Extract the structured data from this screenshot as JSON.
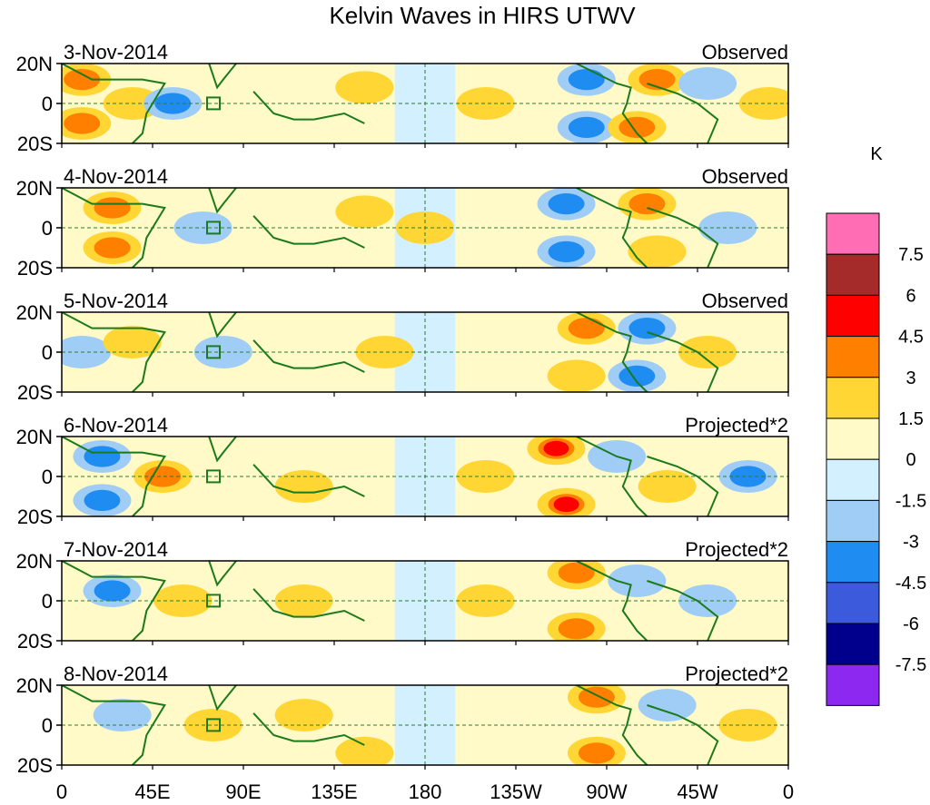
{
  "chart_data": {
    "type": "heatmap",
    "title": "Kelvin Waves in HIRS UTWV",
    "xlabel": "",
    "ylabel": "",
    "x_ticks": [
      "0",
      "45E",
      "90E",
      "135E",
      "180",
      "135W",
      "90W",
      "45W",
      "0"
    ],
    "y_ticks": [
      "20N",
      "0",
      "20S"
    ],
    "xlim": [
      0,
      360
    ],
    "ylim": [
      -20,
      20
    ],
    "colorbar": {
      "unit": "K",
      "levels": [
        "7.5",
        "6",
        "4.5",
        "3",
        "1.5",
        "0",
        "-1.5",
        "-3",
        "-4.5",
        "-6",
        "-7.5"
      ],
      "colors": [
        "#ff6eb4",
        "#a52a2a",
        "#ff0000",
        "#ff7f00",
        "#ffd633",
        "#fffac8",
        "#d2f0ff",
        "#a0cdf5",
        "#1e8cf0",
        "#3c5adc",
        "#00008c",
        "#8c28f0"
      ]
    },
    "panels": [
      {
        "date": "3-Nov-2014",
        "label": "Observed",
        "index": 0
      },
      {
        "date": "4-Nov-2014",
        "label": "Observed",
        "index": 1
      },
      {
        "date": "5-Nov-2014",
        "label": "Observed",
        "index": 2
      },
      {
        "date": "6-Nov-2014",
        "label": "Projected*2",
        "index": 3
      },
      {
        "date": "7-Nov-2014",
        "label": "Projected*2",
        "index": 4
      },
      {
        "date": "8-Nov-2014",
        "label": "Projected*2",
        "index": 5
      }
    ],
    "anomaly_blobs": [
      [
        {
          "lon": 10,
          "lat": 12,
          "value": 3.5
        },
        {
          "lon": 10,
          "lat": -10,
          "value": 3.5
        },
        {
          "lon": 35,
          "lat": 0,
          "value": 1.5
        },
        {
          "lon": 55,
          "lat": 0,
          "value": -3.5
        },
        {
          "lon": 150,
          "lat": 8,
          "value": 1.5
        },
        {
          "lon": 210,
          "lat": 0,
          "value": 1.5
        },
        {
          "lon": 260,
          "lat": 12,
          "value": -3.5
        },
        {
          "lon": 260,
          "lat": -12,
          "value": -3.5
        },
        {
          "lon": 295,
          "lat": 12,
          "value": 3.5
        },
        {
          "lon": 285,
          "lat": -12,
          "value": 3.5
        },
        {
          "lon": 320,
          "lat": 10,
          "value": -2
        },
        {
          "lon": 350,
          "lat": 0,
          "value": 2
        }
      ],
      [
        {
          "lon": 25,
          "lat": 10,
          "value": 3.5
        },
        {
          "lon": 25,
          "lat": -10,
          "value": 3.5
        },
        {
          "lon": 70,
          "lat": 0,
          "value": -2
        },
        {
          "lon": 150,
          "lat": 8,
          "value": 1.5
        },
        {
          "lon": 250,
          "lat": 12,
          "value": -3.5
        },
        {
          "lon": 250,
          "lat": -12,
          "value": -3.5
        },
        {
          "lon": 290,
          "lat": 12,
          "value": 3.5
        },
        {
          "lon": 295,
          "lat": -12,
          "value": 3
        },
        {
          "lon": 330,
          "lat": 0,
          "value": -1.5
        },
        {
          "lon": 180,
          "lat": 0,
          "value": 1
        }
      ],
      [
        {
          "lon": 10,
          "lat": 0,
          "value": -2
        },
        {
          "lon": 35,
          "lat": 5,
          "value": 3
        },
        {
          "lon": 80,
          "lat": 0,
          "value": -2
        },
        {
          "lon": 160,
          "lat": 0,
          "value": 1.5
        },
        {
          "lon": 260,
          "lat": 12,
          "value": 3.5
        },
        {
          "lon": 255,
          "lat": -12,
          "value": 3
        },
        {
          "lon": 290,
          "lat": 12,
          "value": -3.5
        },
        {
          "lon": 285,
          "lat": -12,
          "value": -3.5
        },
        {
          "lon": 320,
          "lat": 0,
          "value": 2
        }
      ],
      [
        {
          "lon": 20,
          "lat": 10,
          "value": -3.5
        },
        {
          "lon": 20,
          "lat": -12,
          "value": -3.5
        },
        {
          "lon": 50,
          "lat": 0,
          "value": 4.5
        },
        {
          "lon": 120,
          "lat": -5,
          "value": 1.5
        },
        {
          "lon": 210,
          "lat": 0,
          "value": 2
        },
        {
          "lon": 245,
          "lat": 14,
          "value": 5
        },
        {
          "lon": 250,
          "lat": -14,
          "value": 5
        },
        {
          "lon": 275,
          "lat": 10,
          "value": -3
        },
        {
          "lon": 300,
          "lat": -5,
          "value": 1.5
        },
        {
          "lon": 340,
          "lat": 0,
          "value": -4
        }
      ],
      [
        {
          "lon": 25,
          "lat": 5,
          "value": -3.5
        },
        {
          "lon": 60,
          "lat": 0,
          "value": 2.5
        },
        {
          "lon": 120,
          "lat": 0,
          "value": 1.5
        },
        {
          "lon": 255,
          "lat": 14,
          "value": 4
        },
        {
          "lon": 255,
          "lat": -14,
          "value": 4
        },
        {
          "lon": 285,
          "lat": 10,
          "value": -3
        },
        {
          "lon": 210,
          "lat": 0,
          "value": 1.5
        },
        {
          "lon": 320,
          "lat": 0,
          "value": -1.5
        }
      ],
      [
        {
          "lon": 30,
          "lat": 5,
          "value": -1.5
        },
        {
          "lon": 75,
          "lat": 0,
          "value": 1.5
        },
        {
          "lon": 120,
          "lat": 5,
          "value": 2.5
        },
        {
          "lon": 150,
          "lat": -14,
          "value": 3
        },
        {
          "lon": 265,
          "lat": 14,
          "value": 4
        },
        {
          "lon": 265,
          "lat": -14,
          "value": 4
        },
        {
          "lon": 300,
          "lat": 10,
          "value": -2
        },
        {
          "lon": 340,
          "lat": 0,
          "value": 1.5
        }
      ]
    ]
  }
}
